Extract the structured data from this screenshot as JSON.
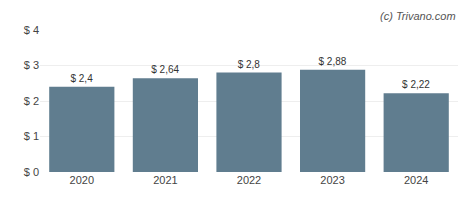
{
  "chart_data": {
    "type": "bar",
    "categories": [
      "2020",
      "2021",
      "2022",
      "2023",
      "2024"
    ],
    "values": [
      2.4,
      2.64,
      2.8,
      2.88,
      2.22
    ],
    "value_labels": [
      "$ 2,4",
      "$ 2,64",
      "$ 2,8",
      "$ 2,88",
      "$ 2,22"
    ],
    "data_labels": true,
    "color": "#607d8f",
    "ylim": [
      0,
      4
    ],
    "yticks": [
      {
        "value": 0,
        "label": "$ 0"
      },
      {
        "value": 1,
        "label": "$ 1"
      },
      {
        "value": 2,
        "label": "$ 2"
      },
      {
        "value": 3,
        "label": "$ 3"
      },
      {
        "value": 4,
        "label": "$ 4"
      }
    ],
    "grid": true,
    "annotations": [
      "(c) Trivano.com"
    ]
  }
}
